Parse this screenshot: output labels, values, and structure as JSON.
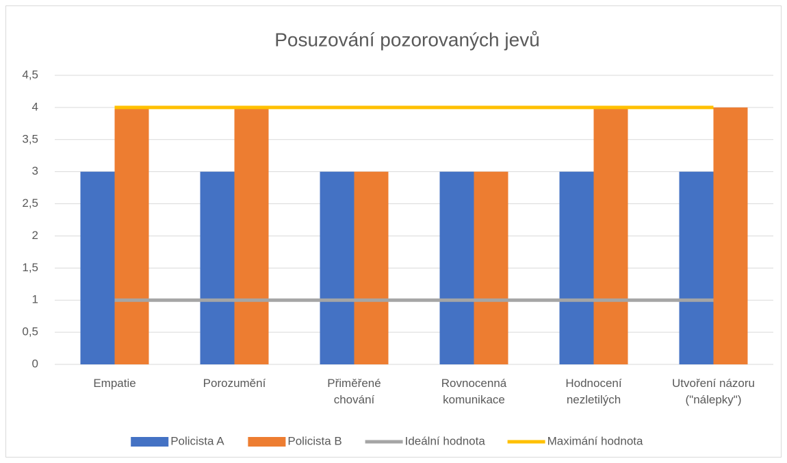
{
  "chart_data": {
    "type": "bar",
    "title": "Posuzování pozorovaných jevů",
    "categories": [
      "Empatie",
      "Porozumění",
      "Přiměřené\nchování",
      "Rovnocenná\nkomunikace",
      "Hodnocení\nnezletilých",
      "Utvoření názoru\n(\"nálepky\")"
    ],
    "series": [
      {
        "name": "Policista A",
        "type": "bar",
        "color": "#4472c4",
        "values": [
          3,
          3,
          3,
          3,
          3,
          3
        ]
      },
      {
        "name": "Policista B",
        "type": "bar",
        "color": "#ed7d31",
        "values": [
          4,
          4,
          3,
          3,
          4,
          4
        ]
      },
      {
        "name": "Ideální hodnota",
        "type": "line",
        "color": "#a5a5a5",
        "values": [
          1,
          1,
          1,
          1,
          1,
          1
        ]
      },
      {
        "name": "Maximání hodnota",
        "type": "line",
        "color": "#ffc000",
        "values": [
          4,
          4,
          4,
          4,
          4,
          4
        ]
      }
    ],
    "ylim": [
      0,
      4.5
    ],
    "yticks": [
      0,
      {
        "value": 0.5,
        "label": "0,5"
      },
      1,
      {
        "value": 1.5,
        "label": "1,5"
      },
      2,
      {
        "value": 2.5,
        "label": "2,5"
      },
      3,
      {
        "value": 3.5,
        "label": "3,5"
      },
      4,
      {
        "value": 4.5,
        "label": "4,5"
      }
    ],
    "grid": true,
    "legend": "bottom"
  }
}
